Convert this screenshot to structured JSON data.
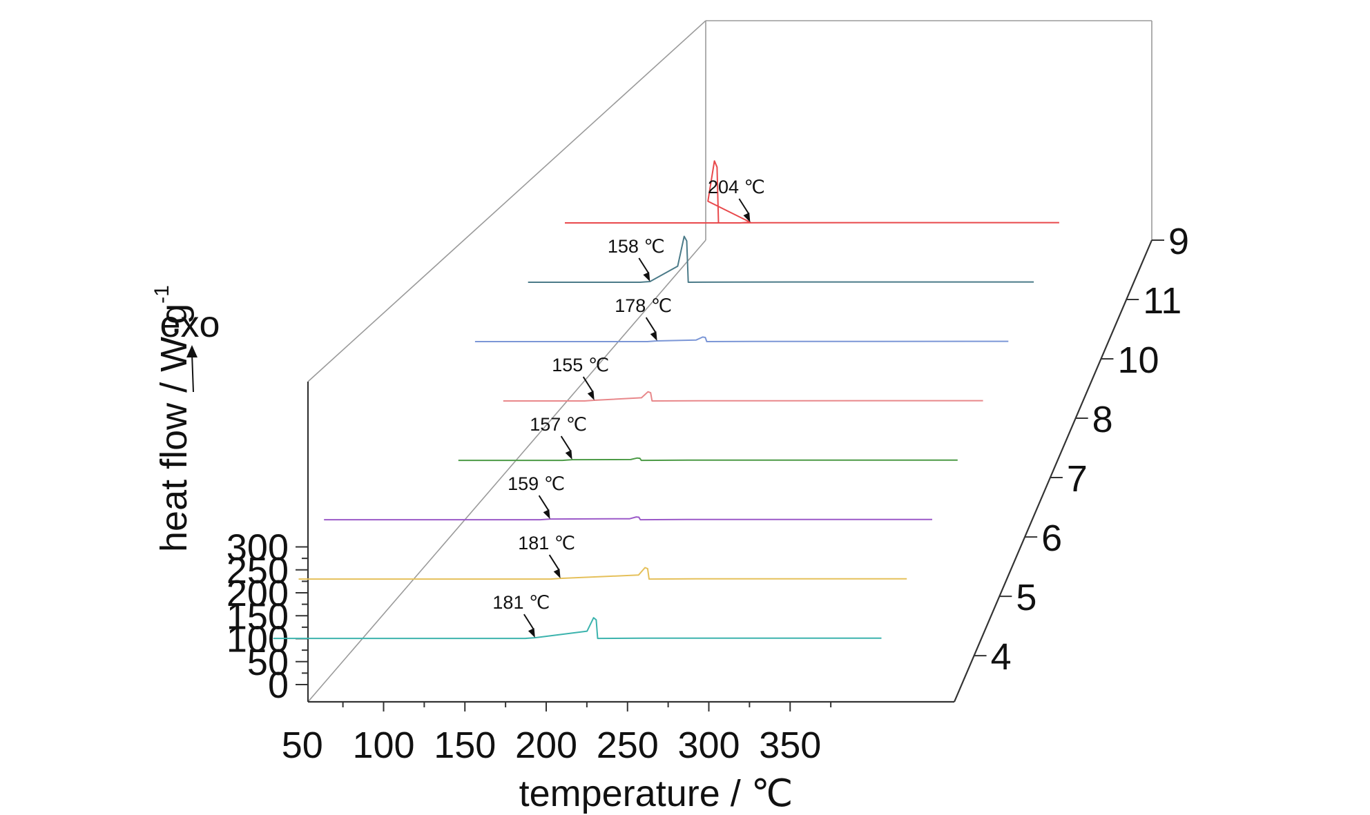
{
  "chart_data": {
    "type": "line",
    "title": "",
    "xlabel": "temperature / ℃",
    "ylabel": "heat flow / W·g",
    "ylabel_superscript": "-1",
    "exo_label": "exo",
    "x_ticks": [
      "50",
      "100",
      "150",
      "200",
      "250",
      "300",
      "350"
    ],
    "y_ticks": [
      "0",
      "50",
      "100",
      "150",
      "200",
      "250",
      "300"
    ],
    "series": [
      {
        "label": "4",
        "color": "#3bb3ad",
        "x_range": [
          20,
          394
        ],
        "peak_x": 218,
        "peak_height": 45,
        "onset": 181,
        "onset_label": "181 ℃"
      },
      {
        "label": "5",
        "color": "#e5c05a",
        "x_range": [
          20,
          394
        ],
        "peak_x": 234,
        "peak_height": 25,
        "onset": 181,
        "onset_label": "181 ℃"
      },
      {
        "label": "6",
        "color": "#9b59c8",
        "x_range": [
          20,
          394
        ],
        "peak_x": 213,
        "peak_height": 6,
        "onset": 159,
        "onset_label": "159 ℃"
      },
      {
        "label": "7",
        "color": "#4b9a45",
        "x_range": [
          87,
          394
        ],
        "peak_x": 198,
        "peak_height": 5,
        "onset": 157,
        "onset_label": "157 ℃"
      },
      {
        "label": "8",
        "color": "#e8878a",
        "x_range": [
          99,
          394
        ],
        "peak_x": 189,
        "peak_height": 20,
        "onset": 155,
        "onset_label": "155 ℃"
      },
      {
        "label": "10",
        "color": "#7b96d6",
        "x_range": [
          66,
          394
        ],
        "peak_x": 207,
        "peak_height": 10,
        "onset": 178,
        "onset_label": "178 ℃"
      },
      {
        "label": "11",
        "color": "#4a7a88",
        "x_range": [
          83,
          394
        ],
        "peak_x": 180,
        "peak_height": 100,
        "onset": 158,
        "onset_label": "158 ℃"
      },
      {
        "label": "9",
        "color": "#e8484b",
        "x_range": [
          90,
          394
        ],
        "peak_x": 183,
        "peak_height": 135,
        "onset": 204,
        "onset_label": "204 ℃"
      }
    ]
  }
}
